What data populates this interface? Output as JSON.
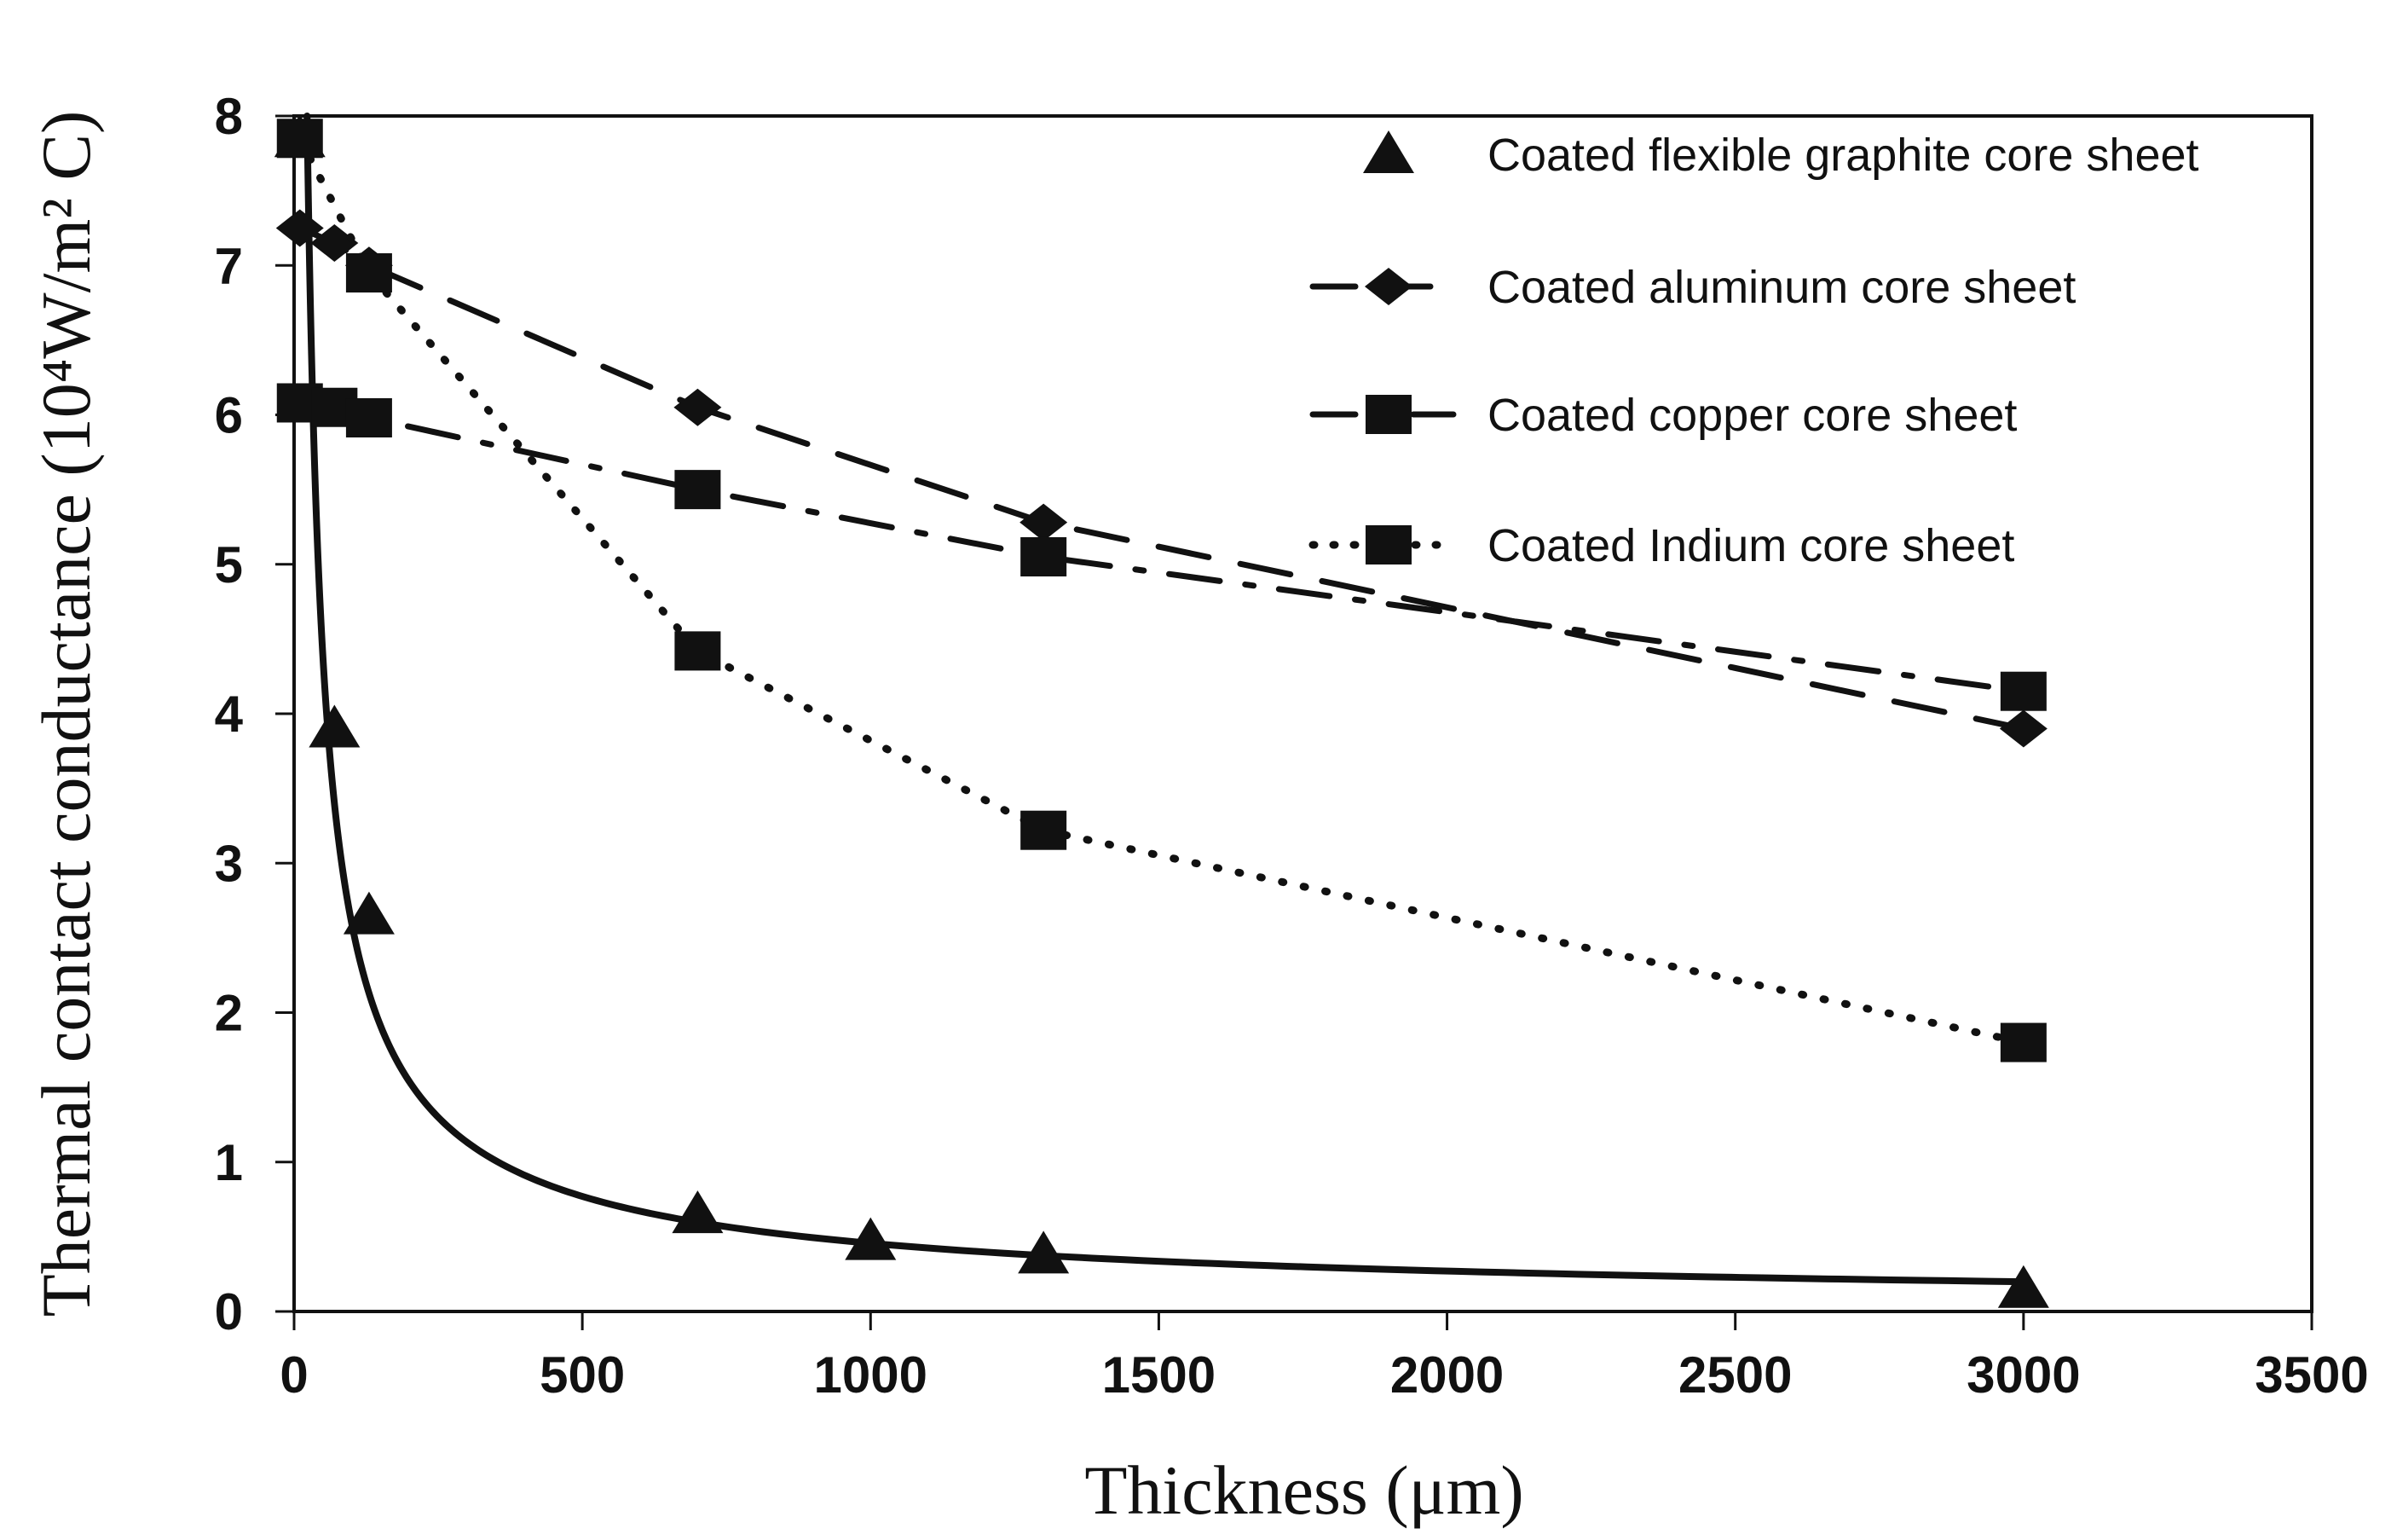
{
  "chart_data": {
    "type": "scatter",
    "title": "",
    "xlabel": "Thickness (μm)",
    "ylabel": "Thermal contact conductance (10⁴W/m² C)",
    "xlim": [
      0,
      3500
    ],
    "ylim": [
      0,
      8
    ],
    "xticks": [
      "0",
      "500",
      "1000",
      "1500",
      "2000",
      "2500",
      "3000",
      "3500"
    ],
    "yticks": [
      "0",
      "1",
      "2",
      "3",
      "4",
      "5",
      "6",
      "7",
      "8"
    ],
    "grid": false,
    "legend_position": "top-right",
    "series": [
      {
        "name": "Coated flexible graphite core sheet",
        "marker": "triangle",
        "line": "solid-fit",
        "x": [
          10,
          70,
          130,
          700,
          1000,
          1300,
          3000
        ],
        "y": [
          7.85,
          3.9,
          2.65,
          0.65,
          0.47,
          0.38,
          0.15
        ],
        "fit": {
          "form": "power",
          "a": 84,
          "b": -0.755
        }
      },
      {
        "name": "Coated aluminum core sheet",
        "marker": "diamond",
        "line": "dashed",
        "x": [
          10,
          70,
          130,
          700,
          1300,
          3000
        ],
        "y": [
          7.25,
          7.15,
          7.0,
          6.05,
          5.28,
          3.9
        ]
      },
      {
        "name": "Coated copper core sheet",
        "marker": "square",
        "line": "dash-dot",
        "x": [
          10,
          70,
          130,
          700,
          1300,
          3000
        ],
        "y": [
          6.08,
          6.05,
          5.98,
          5.5,
          5.05,
          4.15
        ]
      },
      {
        "name": "Coated Indium core sheet",
        "marker": "square",
        "line": "dotted",
        "x": [
          10,
          130,
          700,
          1300,
          3000
        ],
        "y": [
          7.85,
          6.95,
          4.42,
          3.22,
          1.8
        ]
      }
    ]
  }
}
